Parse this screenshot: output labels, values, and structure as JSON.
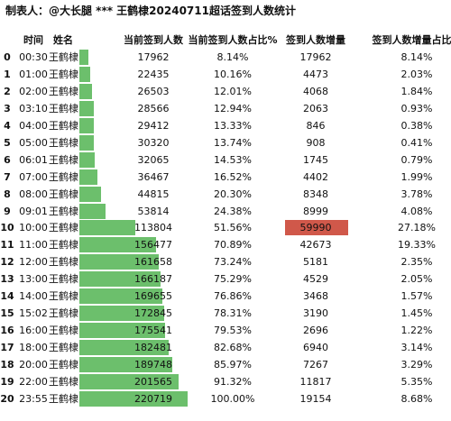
{
  "header": {
    "title": "制表人：@大长腿 *** 王鹤棣20240711超话签到人数统计"
  },
  "table": {
    "columns": [
      "时间",
      "姓名",
      "当前签到人数",
      "当前签到人数占比%",
      "签到人数增量",
      "签到人数增量占比%"
    ],
    "rows": [
      [
        0,
        "00:30",
        "王鹤棣",
        17962,
        "8.14%",
        17962,
        "8.14%"
      ],
      [
        1,
        "01:00",
        "王鹤棣",
        22435,
        "10.16%",
        4473,
        "2.03%"
      ],
      [
        2,
        "02:00",
        "王鹤棣",
        26503,
        "12.01%",
        4068,
        "1.84%"
      ],
      [
        3,
        "03:10",
        "王鹤棣",
        28566,
        "12.94%",
        2063,
        "0.93%"
      ],
      [
        4,
        "04:00",
        "王鹤棣",
        29412,
        "13.33%",
        846,
        "0.38%"
      ],
      [
        5,
        "05:00",
        "王鹤棣",
        30320,
        "13.74%",
        908,
        "0.41%"
      ],
      [
        6,
        "06:01",
        "王鹤棣",
        32065,
        "14.53%",
        1745,
        "0.79%"
      ],
      [
        7,
        "07:00",
        "王鹤棣",
        36467,
        "16.52%",
        4402,
        "1.99%"
      ],
      [
        8,
        "08:00",
        "王鹤棣",
        44815,
        "20.30%",
        8348,
        "3.78%"
      ],
      [
        9,
        "09:01",
        "王鹤棣",
        53814,
        "24.38%",
        8999,
        "4.08%"
      ],
      [
        10,
        "10:00",
        "王鹤棣",
        113804,
        "51.56%",
        59990,
        "27.18%"
      ],
      [
        11,
        "11:00",
        "王鹤棣",
        156477,
        "70.89%",
        42673,
        "19.33%"
      ],
      [
        12,
        "12:00",
        "王鹤棣",
        161658,
        "73.24%",
        5181,
        "2.35%"
      ],
      [
        13,
        "13:00",
        "王鹤棣",
        166187,
        "75.29%",
        4529,
        "2.05%"
      ],
      [
        14,
        "14:00",
        "王鹤棣",
        169655,
        "76.86%",
        3468,
        "1.57%"
      ],
      [
        15,
        "15:02",
        "王鹤棣",
        172845,
        "78.31%",
        3190,
        "1.45%"
      ],
      [
        16,
        "16:00",
        "王鹤棣",
        175541,
        "79.53%",
        2696,
        "1.22%"
      ],
      [
        17,
        "18:00",
        "王鹤棣",
        182481,
        "82.68%",
        6940,
        "3.14%"
      ],
      [
        18,
        "20:00",
        "王鹤棣",
        189748,
        "85.97%",
        7267,
        "3.29%"
      ],
      [
        19,
        "22:00",
        "王鹤棣",
        201565,
        "91.32%",
        11817,
        "5.35%"
      ],
      [
        20,
        "23:55",
        "王鹤棣",
        220719,
        "100.00%",
        19154,
        "8.68%"
      ]
    ]
  }
}
